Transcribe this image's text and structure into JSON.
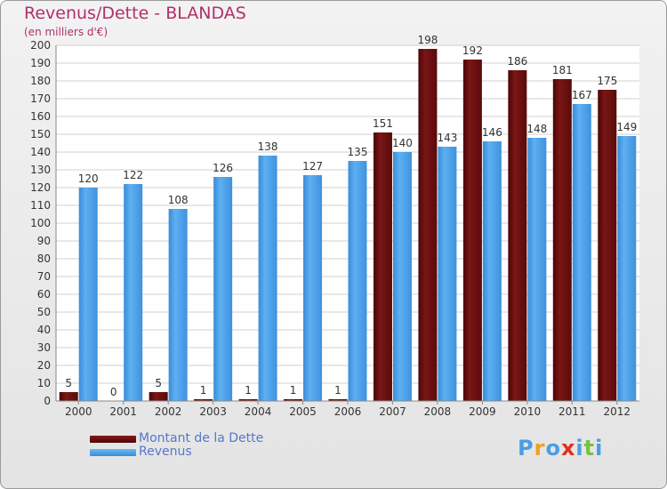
{
  "title": "Revenus/Dette - BLANDAS",
  "subtitle": "(en milliers d'€)",
  "colors": {
    "dette": "#6b0a0a",
    "revenus": "#4a9ee6",
    "title": "#b0306a"
  },
  "logo": {
    "text": "Proxiti",
    "letters": [
      "P",
      "r",
      "o",
      "x",
      "i",
      "t",
      "i"
    ]
  },
  "legend": [
    "Montant de la Dette",
    "Revenus"
  ],
  "chart_data": {
    "type": "bar",
    "categories": [
      "2000",
      "2001",
      "2002",
      "2003",
      "2004",
      "2005",
      "2006",
      "2007",
      "2008",
      "2009",
      "2010",
      "2011",
      "2012"
    ],
    "series": [
      {
        "name": "Montant de la Dette",
        "values": [
          5,
          0,
          5,
          1,
          1,
          1,
          1,
          151,
          198,
          192,
          186,
          181,
          175
        ]
      },
      {
        "name": "Revenus",
        "values": [
          120,
          122,
          108,
          126,
          138,
          127,
          135,
          140,
          143,
          146,
          148,
          167,
          149
        ]
      }
    ],
    "ylim": [
      0,
      200
    ],
    "yticks": [
      0,
      10,
      20,
      30,
      40,
      50,
      60,
      70,
      80,
      90,
      100,
      110,
      120,
      130,
      140,
      150,
      160,
      170,
      180,
      190,
      200
    ],
    "grid": true,
    "legend_position": "bottom-left"
  }
}
